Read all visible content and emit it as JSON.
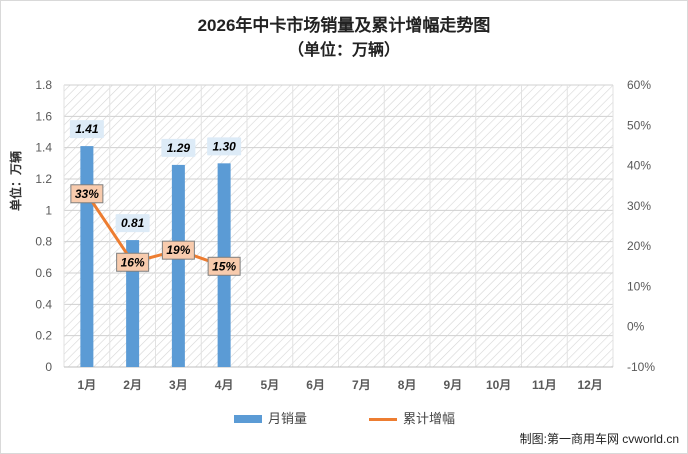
{
  "chart_data": {
    "type": "bar",
    "title": "2026年中卡市场销量及累计增幅走势图",
    "subtitle": "（单位：万辆）",
    "ylabel": "单位：万辆",
    "categories": [
      "1月",
      "2月",
      "3月",
      "4月",
      "5月",
      "6月",
      "7月",
      "8月",
      "9月",
      "10月",
      "11月",
      "12月"
    ],
    "series": [
      {
        "name": "月销量",
        "type": "bar",
        "axis": "left",
        "color": "#5b9bd5",
        "values": [
          1.41,
          0.81,
          1.29,
          1.3,
          null,
          null,
          null,
          null,
          null,
          null,
          null,
          null
        ],
        "labels": [
          "1.41",
          "0.81",
          "1.29",
          "1.30"
        ]
      },
      {
        "name": "累计增幅",
        "type": "line",
        "axis": "right",
        "color": "#ed7d31",
        "values": [
          33,
          16,
          19,
          15,
          null,
          null,
          null,
          null,
          null,
          null,
          null,
          null
        ],
        "labels": [
          "33%",
          "16%",
          "19%",
          "15%"
        ]
      }
    ],
    "ylim": [
      0,
      1.8
    ],
    "yticks": [
      "0",
      "0.2",
      "0.4",
      "0.6",
      "0.8",
      "1",
      "1.2",
      "1.4",
      "1.6",
      "1.8"
    ],
    "y2lim": [
      -10,
      60
    ],
    "y2ticks": [
      "-10%",
      "0%",
      "10%",
      "20%",
      "30%",
      "40%",
      "50%",
      "60%"
    ],
    "legend": "bottom",
    "plot_background": "hatched"
  },
  "credit": "制图:第一商用车网 cvworld.cn"
}
